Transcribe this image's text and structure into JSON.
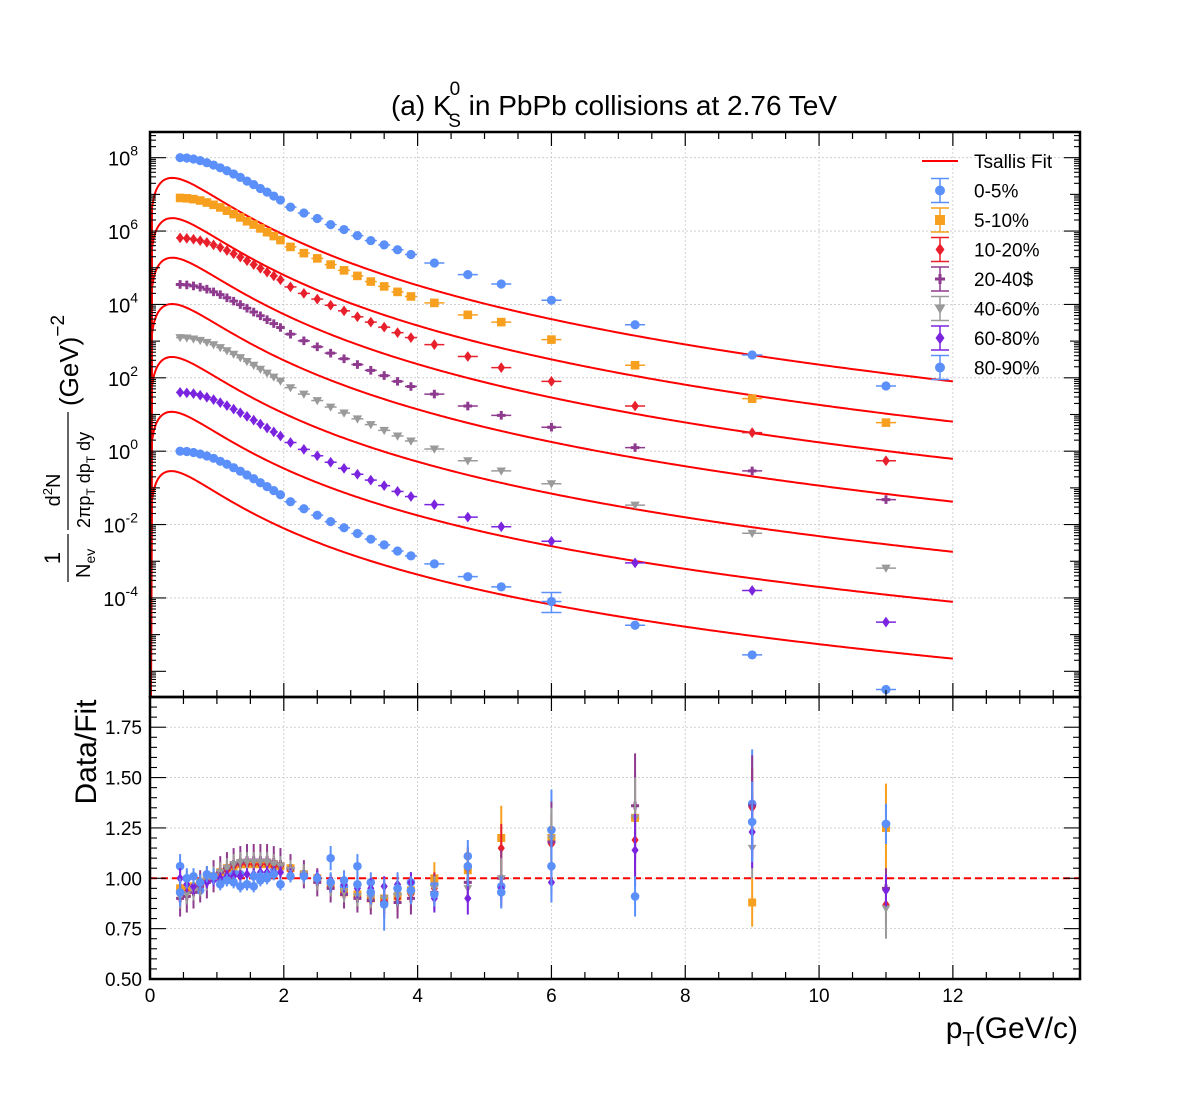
{
  "chart_data": [
    {
      "type": "scatter",
      "panel": "spectra",
      "title": {
        "prefix": "(a) K",
        "sup": "0",
        "sub": "S",
        "suffix": " in PbPb collisions at 2.76 TeV"
      },
      "xlabel": "",
      "ylabel": {
        "num_one": "1",
        "den_nev": "N",
        "den_nev_sub": "ev",
        "num2": "d",
        "num2_sup": "2",
        "num2_tail": "N",
        "den2": "2πp",
        "den2_sub": "T",
        "den2_tail": " dp",
        "den2_sub2": "T",
        "den2_tail2": " dy",
        "unit": "(GeV)",
        "unit_sup": "−2"
      },
      "yscale": "log",
      "xlim": [
        0,
        13.9
      ],
      "ylim_log10": [
        -6.7,
        8.7
      ],
      "yticks": [
        {
          "base": "10",
          "exp": "8",
          "log": 8
        },
        {
          "base": "10",
          "exp": "6",
          "log": 6
        },
        {
          "base": "10",
          "exp": "4",
          "log": 4
        },
        {
          "base": "10",
          "exp": "2",
          "log": 2
        },
        {
          "base": "10",
          "exp": "0",
          "log": 0
        },
        {
          "base": "10",
          "exp": "-2",
          "log": -2
        },
        {
          "base": "10",
          "exp": "-4",
          "log": -4
        }
      ],
      "legend_position": "top-right",
      "legend": [
        {
          "label": "Tsallis Fit",
          "kind": "line",
          "color": "#ff0000"
        },
        {
          "label": "0-5%",
          "kind": "circle",
          "color": "#5b8ff9"
        },
        {
          "label": "5-10%",
          "kind": "square",
          "color": "#f7a020"
        },
        {
          "label": "10-20%",
          "kind": "diamond",
          "color": "#e8202c"
        },
        {
          "label": "20-40$",
          "kind": "cross",
          "color": "#8e3a8e"
        },
        {
          "label": "40-60%",
          "kind": "triangle-down",
          "color": "#9a9a9a"
        },
        {
          "label": "60-80%",
          "kind": "diamond",
          "color": "#7a24e0"
        },
        {
          "label": "80-90%",
          "kind": "circle",
          "color": "#5b8ff9"
        }
      ],
      "x": [
        0.45,
        0.55,
        0.65,
        0.75,
        0.85,
        0.95,
        1.05,
        1.15,
        1.25,
        1.35,
        1.45,
        1.55,
        1.65,
        1.75,
        1.85,
        1.95,
        2.1,
        2.3,
        2.5,
        2.7,
        2.9,
        3.1,
        3.3,
        3.5,
        3.7,
        3.9,
        4.25,
        4.75,
        5.25,
        6.0,
        7.25,
        9.0,
        11.0
      ],
      "series": [
        {
          "name": "0-5%",
          "marker": "circle",
          "color": "#5b8ff9",
          "values": [
            100000000.0,
            98000000.0,
            92000000.0,
            83000000.0,
            73000000.0,
            63000000.0,
            53000000.0,
            44000000.0,
            36000000.0,
            29000000.0,
            23000000.0,
            18500000.0,
            14500000.0,
            11500000.0,
            9000000.0,
            7000000.0,
            4500000.0,
            3100000.0,
            2200000.0,
            1500000.0,
            1100000.0,
            750000.0,
            550000.0,
            420000.0,
            310000.0,
            230000.0,
            135000.0,
            65000.0,
            36000.0,
            13000.0,
            2800.0,
            420.0,
            60
          ],
          "fit": {
            "A": 150000000.0,
            "T": 0.17,
            "q": 1.138,
            "m": 0.4976
          }
        },
        {
          "name": "5-10%",
          "marker": "square",
          "color": "#f7a020",
          "values": [
            8000000.0,
            7800000.0,
            7400000.0,
            6800000.0,
            6000000.0,
            5200000.0,
            4400000.0,
            3600000.0,
            2900000.0,
            2350000.0,
            1850000.0,
            1500000.0,
            1180000.0,
            930000.0,
            730000.0,
            570000.0,
            370000.0,
            250000.0,
            180000.0,
            122000.0,
            85000.0,
            60000.0,
            42000.0,
            31000.0,
            22000.0,
            16500.0,
            11000.0,
            5200.0,
            3300.0,
            1100.0,
            220.0,
            27,
            6
          ],
          "fit": {
            "A": 12000000.0,
            "T": 0.17,
            "q": 1.138,
            "m": 0.4976
          }
        },
        {
          "name": "10-20%",
          "marker": "diamond",
          "color": "#e8202c",
          "values": [
            650000.0,
            630000.0,
            600000.0,
            550000.0,
            490000.0,
            420000.0,
            360000.0,
            295000.0,
            240000.0,
            195000.0,
            155000.0,
            122000.0,
            96000.0,
            76000.0,
            60000.0,
            47000.0,
            30000.0,
            20000.0,
            14000.0,
            9500.0,
            6700.0,
            4600.0,
            3300.0,
            2400.0,
            1700.0,
            1250.0,
            800.0,
            380.0,
            190.0,
            80,
            17,
            3.2,
            0.55
          ],
          "fit": {
            "A": 1000000.0,
            "T": 0.17,
            "q": 1.14,
            "m": 0.4976
          }
        },
        {
          "name": "20-40$",
          "marker": "cross",
          "color": "#8e3a8e",
          "values": [
            35000.0,
            34000.0,
            32000.0,
            29500.0,
            26000.0,
            22000.0,
            18500.0,
            15200.0,
            12300.0,
            9900.0,
            7900.0,
            6200.0,
            4900.0,
            3850.0,
            3000.0,
            2350.0,
            1550.0,
            1020.0,
            700.0,
            470.0,
            330.0,
            230.0,
            160.0,
            115.0,
            80,
            58,
            36,
            17,
            9.5,
            4.5,
            1.25,
            0.29,
            0.048
          ],
          "fit": {
            "A": 55000.0,
            "T": 0.168,
            "q": 1.144,
            "m": 0.4976
          }
        },
        {
          "name": "40-60%",
          "marker": "triangle-down",
          "color": "#9a9a9a",
          "values": [
            1250.0,
            1220.0,
            1150.0,
            1050.0,
            930.0,
            800.0,
            670.0,
            550.0,
            440.0,
            355.0,
            280.0,
            220.0,
            172.0,
            135.0,
            105.0,
            82,
            54,
            36,
            24,
            16,
            11,
            7.6,
            5.3,
            3.7,
            2.6,
            1.9,
            1.15,
            0.55,
            0.29,
            0.13,
            0.034,
            0.0058,
            0.00065
          ],
          "fit": {
            "A": 2000.0,
            "T": 0.165,
            "q": 1.148,
            "m": 0.4976
          }
        },
        {
          "name": "60-80%",
          "marker": "diamond",
          "color": "#7a24e0",
          "values": [
            40,
            39,
            37,
            33.5,
            29.5,
            25.5,
            21,
            17.5,
            14,
            11.2,
            8.9,
            7.0,
            5.5,
            4.3,
            3.35,
            2.6,
            1.72,
            1.12,
            0.75,
            0.5,
            0.34,
            0.235,
            0.163,
            0.115,
            0.08,
            0.058,
            0.035,
            0.016,
            0.0087,
            0.0035,
            0.0009,
            0.00016,
            2.2e-05
          ],
          "fit": {
            "A": 65,
            "T": 0.16,
            "q": 1.155,
            "m": 0.4976
          }
        },
        {
          "name": "80-90%",
          "marker": "circle",
          "color": "#5b8ff9",
          "values": [
            1.0,
            0.98,
            0.92,
            0.84,
            0.74,
            0.64,
            0.53,
            0.44,
            0.355,
            0.285,
            0.225,
            0.177,
            0.138,
            0.108,
            0.084,
            0.065,
            0.042,
            0.027,
            0.018,
            0.012,
            0.0082,
            0.0057,
            0.004,
            0.0028,
            0.0019,
            0.0014,
            0.00085,
            0.00038,
            0.0002,
            8e-05,
            1.8e-05,
            2.8e-06,
            3.2e-07
          ],
          "fit": {
            "A": 1.6,
            "T": 0.155,
            "q": 1.16,
            "m": 0.4976
          }
        }
      ]
    },
    {
      "type": "scatter",
      "panel": "ratio",
      "xlabel": {
        "main": "p",
        "sub": "T",
        "tail": "(GeV/c)"
      },
      "ylabel": "Data/Fit",
      "xlim": [
        0,
        13.9
      ],
      "ylim": [
        0.5,
        1.9
      ],
      "xticks": [
        "0",
        "2",
        "4",
        "6",
        "8",
        "10",
        "12"
      ],
      "yticks": [
        "0.50",
        "0.75",
        "1.00",
        "1.25",
        "1.50",
        "1.75"
      ],
      "reference_line": 1.0,
      "reference_color": "#ff0000",
      "x": [
        0.45,
        0.55,
        0.65,
        0.75,
        0.85,
        0.95,
        1.05,
        1.15,
        1.25,
        1.35,
        1.45,
        1.55,
        1.65,
        1.75,
        1.85,
        1.95,
        2.1,
        2.3,
        2.5,
        2.7,
        2.9,
        3.1,
        3.3,
        3.5,
        3.7,
        3.9,
        4.25,
        4.75,
        5.25,
        6.0,
        7.25,
        9.0,
        11.0
      ],
      "series": [
        {
          "name": "0-5%",
          "marker": "circle",
          "color": "#5b8ff9",
          "values": [
            1.06,
            1.0,
            0.96,
            0.94,
            1.0,
            1.01,
            0.99,
            1.01,
            1.03,
            1.02,
            0.97,
            0.96,
            0.99,
            1.0,
            1.05,
            0.97,
            1.05,
            1.02,
            1.0,
            1.1,
            0.96,
            1.06,
            0.98,
            0.9,
            0.92,
            0.98,
            0.97,
            1.11,
            0.96,
            1.24,
            1.3,
            1.37,
            1.27
          ],
          "errors": [
            0.06,
            0.04,
            0.04,
            0.03,
            0.03,
            0.03,
            0.03,
            0.03,
            0.03,
            0.03,
            0.03,
            0.03,
            0.03,
            0.03,
            0.03,
            0.03,
            0.03,
            0.03,
            0.03,
            0.06,
            0.05,
            0.06,
            0.05,
            0.05,
            0.05,
            0.05,
            0.05,
            0.08,
            0.06,
            0.2,
            0.22,
            0.27,
            0.15
          ]
        },
        {
          "name": "5-10%",
          "marker": "square",
          "color": "#f7a020",
          "values": [
            0.95,
            0.94,
            0.96,
            0.98,
            1.0,
            1.01,
            1.03,
            1.05,
            1.06,
            1.07,
            1.07,
            1.07,
            1.07,
            1.07,
            1.07,
            1.06,
            1.05,
            1.02,
            1.0,
            0.97,
            0.93,
            0.92,
            0.9,
            0.9,
            0.91,
            0.94,
            1.0,
            1.04,
            1.2,
            1.2,
            1.3,
            0.88,
            1.25
          ],
          "errors": [
            0.05,
            0.05,
            0.04,
            0.04,
            0.04,
            0.04,
            0.04,
            0.04,
            0.04,
            0.04,
            0.04,
            0.04,
            0.04,
            0.04,
            0.04,
            0.04,
            0.04,
            0.04,
            0.04,
            0.05,
            0.05,
            0.05,
            0.06,
            0.06,
            0.06,
            0.07,
            0.08,
            0.1,
            0.16,
            0.12,
            0.2,
            0.12,
            0.22
          ]
        },
        {
          "name": "10-20%",
          "marker": "diamond",
          "color": "#e8202c",
          "values": [
            0.92,
            0.93,
            0.95,
            0.97,
            0.99,
            1.01,
            1.03,
            1.04,
            1.06,
            1.07,
            1.07,
            1.07,
            1.07,
            1.07,
            1.06,
            1.06,
            1.04,
            1.02,
            0.99,
            0.96,
            0.93,
            0.91,
            0.9,
            0.89,
            0.9,
            0.92,
            0.95,
            1.05,
            1.15,
            1.17,
            1.19,
            1.35,
            0.87
          ],
          "errors": [
            0.07,
            0.06,
            0.05,
            0.05,
            0.05,
            0.05,
            0.05,
            0.05,
            0.05,
            0.05,
            0.05,
            0.05,
            0.05,
            0.05,
            0.05,
            0.05,
            0.05,
            0.05,
            0.05,
            0.05,
            0.05,
            0.06,
            0.06,
            0.07,
            0.07,
            0.08,
            0.08,
            0.1,
            0.12,
            0.15,
            0.2,
            0.2,
            0.1
          ]
        },
        {
          "name": "20-40$",
          "marker": "cross",
          "color": "#8e3a8e",
          "values": [
            0.9,
            0.91,
            0.93,
            0.96,
            0.98,
            1.01,
            1.03,
            1.05,
            1.07,
            1.08,
            1.09,
            1.09,
            1.09,
            1.09,
            1.08,
            1.07,
            1.05,
            1.02,
            0.98,
            0.95,
            0.92,
            0.9,
            0.89,
            0.88,
            0.88,
            0.9,
            0.93,
            0.98,
            1.0,
            1.18,
            1.36,
            1.36,
            0.95
          ],
          "errors": [
            0.09,
            0.08,
            0.08,
            0.08,
            0.08,
            0.08,
            0.08,
            0.08,
            0.08,
            0.08,
            0.08,
            0.08,
            0.08,
            0.08,
            0.08,
            0.08,
            0.07,
            0.07,
            0.07,
            0.07,
            0.07,
            0.07,
            0.07,
            0.08,
            0.08,
            0.08,
            0.09,
            0.1,
            0.14,
            0.2,
            0.26,
            0.25,
            0.1
          ]
        },
        {
          "name": "40-60%",
          "marker": "triangle-down",
          "color": "#9a9a9a",
          "values": [
            0.91,
            0.92,
            0.94,
            0.96,
            0.99,
            1.01,
            1.03,
            1.05,
            1.07,
            1.08,
            1.08,
            1.08,
            1.08,
            1.08,
            1.07,
            1.06,
            1.04,
            1.02,
            0.99,
            0.96,
            0.93,
            0.91,
            0.9,
            0.9,
            0.91,
            0.92,
            0.95,
            0.95,
            1.0,
            1.2,
            1.3,
            1.15,
            0.85
          ],
          "errors": [
            0.06,
            0.05,
            0.05,
            0.05,
            0.05,
            0.05,
            0.05,
            0.05,
            0.05,
            0.05,
            0.05,
            0.05,
            0.05,
            0.05,
            0.05,
            0.05,
            0.05,
            0.05,
            0.05,
            0.05,
            0.05,
            0.05,
            0.05,
            0.05,
            0.05,
            0.05,
            0.06,
            0.07,
            0.1,
            0.15,
            0.2,
            0.15,
            0.15
          ]
        },
        {
          "name": "60-80%",
          "marker": "diamond",
          "color": "#7a24e0",
          "values": [
            1.0,
            0.97,
            0.96,
            0.97,
            0.98,
            0.99,
            1.0,
            1.01,
            1.01,
            1.01,
            1.02,
            1.02,
            1.03,
            1.03,
            1.03,
            1.03,
            1.02,
            1.01,
            1.01,
            0.99,
            0.97,
            0.95,
            0.95,
            0.96,
            0.97,
            0.98,
            0.9,
            0.9,
            0.95,
            0.98,
            1.14,
            1.23,
            0.94
          ],
          "errors": [
            0.05,
            0.04,
            0.04,
            0.03,
            0.03,
            0.03,
            0.03,
            0.03,
            0.03,
            0.03,
            0.03,
            0.03,
            0.03,
            0.03,
            0.03,
            0.03,
            0.03,
            0.03,
            0.03,
            0.03,
            0.04,
            0.05,
            0.05,
            0.05,
            0.05,
            0.05,
            0.07,
            0.08,
            0.06,
            0.06,
            0.18,
            0.18,
            0.08
          ]
        },
        {
          "name": "80-90%",
          "marker": "circle",
          "color": "#5b8ff9",
          "values": [
            0.93,
            1.0,
            1.01,
            0.98,
            1.02,
            1.01,
            0.97,
            0.99,
            0.98,
            0.96,
            0.97,
            1.01,
            1.01,
            1.01,
            1.02,
            0.97,
            1.01,
            1.01,
            1.0,
            0.98,
            0.99,
            0.97,
            0.93,
            0.87,
            0.95,
            0.94,
            0.92,
            1.06,
            0.93,
            1.06,
            0.91,
            1.28,
            1.27
          ],
          "errors": [
            0.07,
            0.05,
            0.04,
            0.04,
            0.04,
            0.04,
            0.03,
            0.03,
            0.03,
            0.03,
            0.03,
            0.03,
            0.03,
            0.03,
            0.03,
            0.03,
            0.03,
            0.03,
            0.03,
            0.05,
            0.05,
            0.06,
            0.06,
            0.13,
            0.08,
            0.07,
            0.06,
            0.1,
            0.08,
            0.18,
            0.1,
            0.2,
            0.1
          ]
        }
      ]
    }
  ]
}
